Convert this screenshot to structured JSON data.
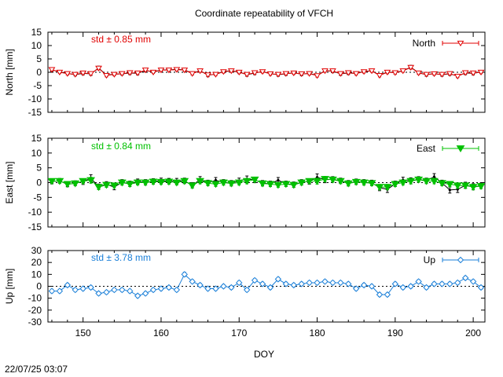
{
  "title": "Coordinate repeatability of VFCH",
  "timestamp": "22/07/25 03:07",
  "xlabel": "DOY",
  "chart_data": [
    {
      "type": "line",
      "name": "North",
      "ylabel": "North [mm]",
      "legend": "North",
      "legend_position": "top-right",
      "std_label": "std ± 0.85 mm",
      "color": "#e00000",
      "marker": "triangle-down-open",
      "xlim": [
        145.5,
        201.5
      ],
      "ylim": [
        -15,
        15
      ],
      "yticks": [
        "15",
        "10",
        "5",
        "0",
        "-5",
        "-10",
        "-15"
      ],
      "xticks": [
        "150",
        "160",
        "170",
        "180",
        "190",
        "200"
      ],
      "x": [
        146,
        147,
        148,
        149,
        150,
        151,
        152,
        153,
        154,
        155,
        156,
        157,
        158,
        159,
        160,
        161,
        162,
        163,
        164,
        165,
        166,
        167,
        168,
        169,
        170,
        171,
        172,
        173,
        174,
        175,
        176,
        177,
        178,
        179,
        180,
        181,
        182,
        183,
        184,
        185,
        186,
        187,
        188,
        189,
        190,
        191,
        192,
        193,
        194,
        195,
        196,
        197,
        198,
        199,
        200,
        201
      ],
      "values": [
        1.0,
        0.0,
        -0.5,
        -0.8,
        -0.3,
        -0.5,
        1.5,
        -1.2,
        -0.8,
        -0.5,
        -0.2,
        -0.3,
        0.8,
        0.0,
        0.8,
        0.8,
        1.0,
        0.8,
        -0.5,
        0.5,
        -1.0,
        -0.8,
        0.2,
        0.5,
        0.0,
        -0.8,
        -0.2,
        0.2,
        -0.6,
        -0.8,
        -0.5,
        -0.3,
        -0.6,
        -0.5,
        -1.3,
        0.5,
        0.5,
        -0.5,
        -0.2,
        -0.5,
        0.2,
        0.5,
        -1.2,
        0.0,
        -0.2,
        0.5,
        1.8,
        -0.3,
        -0.8,
        -0.6,
        -0.8,
        -0.5,
        -1.5,
        -0.2,
        -0.3,
        0.0
      ],
      "errors": [
        0.5,
        0.4,
        0.5,
        0.4,
        0.5,
        0.5,
        0.6,
        0.5,
        0.5,
        0.4,
        0.5,
        0.5,
        0.5,
        0.4,
        0.5,
        0.5,
        0.5,
        0.5,
        0.5,
        0.5,
        0.5,
        0.5,
        0.5,
        0.5,
        0.5,
        0.5,
        0.5,
        0.5,
        0.5,
        0.5,
        0.5,
        0.5,
        0.5,
        0.5,
        0.5,
        0.5,
        0.5,
        0.5,
        0.5,
        0.5,
        0.5,
        0.5,
        0.5,
        0.5,
        0.5,
        0.5,
        0.6,
        0.5,
        0.5,
        0.5,
        0.5,
        0.5,
        0.5,
        0.5,
        0.5,
        0.5
      ],
      "reference_values": [
        0.9,
        0.1,
        -0.4,
        -0.9,
        -0.4,
        -0.6,
        1.6,
        -1.1,
        -0.7,
        -0.6,
        -0.3,
        -0.4,
        0.7,
        0.1,
        0.9,
        0.9,
        1.1,
        0.9,
        -0.4,
        0.6,
        -1.1,
        -0.7,
        0.3,
        0.6,
        0.1,
        -0.9,
        -0.3,
        0.3,
        -0.5,
        -0.9,
        -0.6,
        -0.2,
        -0.7,
        -0.4,
        -1.2,
        0.6,
        0.4,
        -0.6,
        -0.3,
        -0.4,
        0.3,
        0.6,
        -1.1,
        0.1,
        -0.1,
        0.6,
        1.9,
        -0.2,
        -0.9,
        -0.5,
        -0.9,
        -0.6,
        -1.4,
        -0.3,
        -0.4,
        0.1
      ]
    },
    {
      "type": "line",
      "name": "East",
      "ylabel": "East [mm]",
      "legend": "East",
      "legend_position": "top-right",
      "std_label": "std ± 0.84 mm",
      "color": "#00c000",
      "marker": "triangle-down-filled",
      "xlim": [
        145.5,
        201.5
      ],
      "ylim": [
        -15,
        15
      ],
      "yticks": [
        "15",
        "10",
        "5",
        "0",
        "-5",
        "-10",
        "-15"
      ],
      "xticks": [
        "150",
        "160",
        "170",
        "180",
        "190",
        "200"
      ],
      "x": [
        146,
        147,
        148,
        149,
        150,
        151,
        152,
        153,
        154,
        155,
        156,
        157,
        158,
        159,
        160,
        161,
        162,
        163,
        164,
        165,
        166,
        167,
        168,
        169,
        170,
        171,
        172,
        173,
        174,
        175,
        176,
        177,
        178,
        179,
        180,
        181,
        182,
        183,
        184,
        185,
        186,
        187,
        188,
        189,
        190,
        191,
        192,
        193,
        194,
        195,
        196,
        197,
        198,
        199,
        200,
        201
      ],
      "values": [
        0.5,
        0.5,
        -0.5,
        -0.3,
        0.5,
        0.8,
        -1.5,
        -0.8,
        -1.0,
        0.0,
        -0.5,
        0.0,
        0.0,
        0.3,
        0.2,
        0.3,
        0.0,
        0.5,
        -1.0,
        0.5,
        -0.2,
        -0.5,
        0.0,
        -0.3,
        0.0,
        0.5,
        1.0,
        -0.3,
        -0.5,
        -0.8,
        -0.5,
        -0.8,
        0.0,
        0.5,
        0.5,
        1.2,
        1.0,
        0.5,
        -0.3,
        0.2,
        0.0,
        -0.2,
        -1.5,
        -1.5,
        -0.5,
        0.0,
        0.5,
        1.0,
        0.5,
        0.5,
        -0.2,
        -0.5,
        -1.0,
        -1.0,
        -1.5,
        -1.2
      ],
      "errors": [
        0.7,
        0.7,
        0.7,
        0.7,
        0.8,
        1.0,
        0.8,
        0.8,
        0.8,
        0.8,
        0.8,
        0.8,
        0.8,
        0.8,
        0.8,
        0.8,
        0.8,
        0.8,
        0.8,
        0.9,
        0.8,
        0.8,
        0.8,
        0.8,
        0.8,
        0.9,
        0.8,
        0.8,
        0.8,
        0.8,
        0.8,
        0.8,
        0.8,
        0.8,
        1.0,
        0.9,
        0.8,
        0.8,
        0.8,
        0.8,
        0.8,
        0.8,
        0.9,
        0.9,
        0.8,
        0.8,
        0.9,
        0.8,
        0.8,
        0.9,
        0.8,
        0.9,
        0.9,
        0.9,
        0.9,
        0.8
      ],
      "reference_values": [
        0.4,
        0.6,
        -0.6,
        -0.2,
        0.3,
        1.5,
        -1.4,
        -0.6,
        -1.5,
        0.1,
        -0.4,
        0.3,
        0.1,
        0.4,
        0.6,
        0.5,
        0.5,
        0.6,
        -0.9,
        1.0,
        -0.1,
        0.8,
        0.1,
        -0.2,
        0.6,
        1.2,
        0.9,
        -0.2,
        -0.4,
        0.8,
        -0.4,
        -0.7,
        0.1,
        0.4,
        1.8,
        1.0,
        1.1,
        0.6,
        -0.2,
        0.3,
        0.1,
        -0.1,
        -1.7,
        -2.3,
        -0.4,
        0.9,
        0.6,
        1.1,
        0.6,
        2.0,
        -0.1,
        -2.5,
        -2.3,
        -0.9,
        -1.4,
        -1.1
      ]
    },
    {
      "type": "line",
      "name": "Up",
      "ylabel": "Up [mm]",
      "legend": "Up",
      "legend_position": "top-right",
      "std_label": "std ± 3.78 mm",
      "color": "#1a7fd8",
      "marker": "diamond-open",
      "xlim": [
        145.5,
        201.5
      ],
      "ylim": [
        -30,
        30
      ],
      "yticks": [
        "30",
        "20",
        "10",
        "0",
        "-10",
        "-20",
        "-30"
      ],
      "xticks": [
        "150",
        "160",
        "170",
        "180",
        "190",
        "200"
      ],
      "x": [
        146,
        147,
        148,
        149,
        150,
        151,
        152,
        153,
        154,
        155,
        156,
        157,
        158,
        159,
        160,
        161,
        162,
        163,
        164,
        165,
        166,
        167,
        168,
        169,
        170,
        171,
        172,
        173,
        174,
        175,
        176,
        177,
        178,
        179,
        180,
        181,
        182,
        183,
        184,
        185,
        186,
        187,
        188,
        189,
        190,
        191,
        192,
        193,
        194,
        195,
        196,
        197,
        198,
        199,
        200,
        201
      ],
      "values": [
        -4,
        -4,
        1,
        -3,
        -2,
        -1,
        -6,
        -5,
        -3,
        -3,
        -4,
        -8,
        -6,
        -3,
        -2,
        -1,
        -3,
        10,
        4,
        1,
        -2,
        -2,
        0,
        -1,
        3,
        -3,
        5,
        2,
        -1,
        6,
        2,
        1,
        2,
        3,
        3,
        4,
        3,
        3,
        2,
        -2,
        1,
        0,
        -7,
        -7,
        2,
        -1,
        0,
        4,
        -1,
        2,
        2,
        2,
        3,
        7,
        4,
        -1
      ],
      "errors": [
        1.5,
        1.5,
        1.5,
        1.5,
        1.5,
        1.5,
        1.5,
        1.5,
        1.5,
        1.5,
        1.5,
        1.5,
        1.5,
        1.5,
        1.5,
        1.5,
        1.5,
        1.8,
        1.5,
        1.5,
        1.5,
        1.5,
        1.5,
        1.5,
        1.5,
        1.5,
        1.5,
        1.5,
        1.5,
        1.5,
        1.5,
        1.5,
        1.5,
        1.5,
        1.5,
        1.5,
        1.5,
        1.5,
        1.5,
        1.5,
        1.5,
        1.5,
        1.5,
        1.5,
        1.5,
        1.5,
        1.5,
        1.5,
        1.5,
        1.5,
        1.5,
        1.5,
        1.5,
        1.5,
        1.5,
        1.5
      ]
    }
  ]
}
